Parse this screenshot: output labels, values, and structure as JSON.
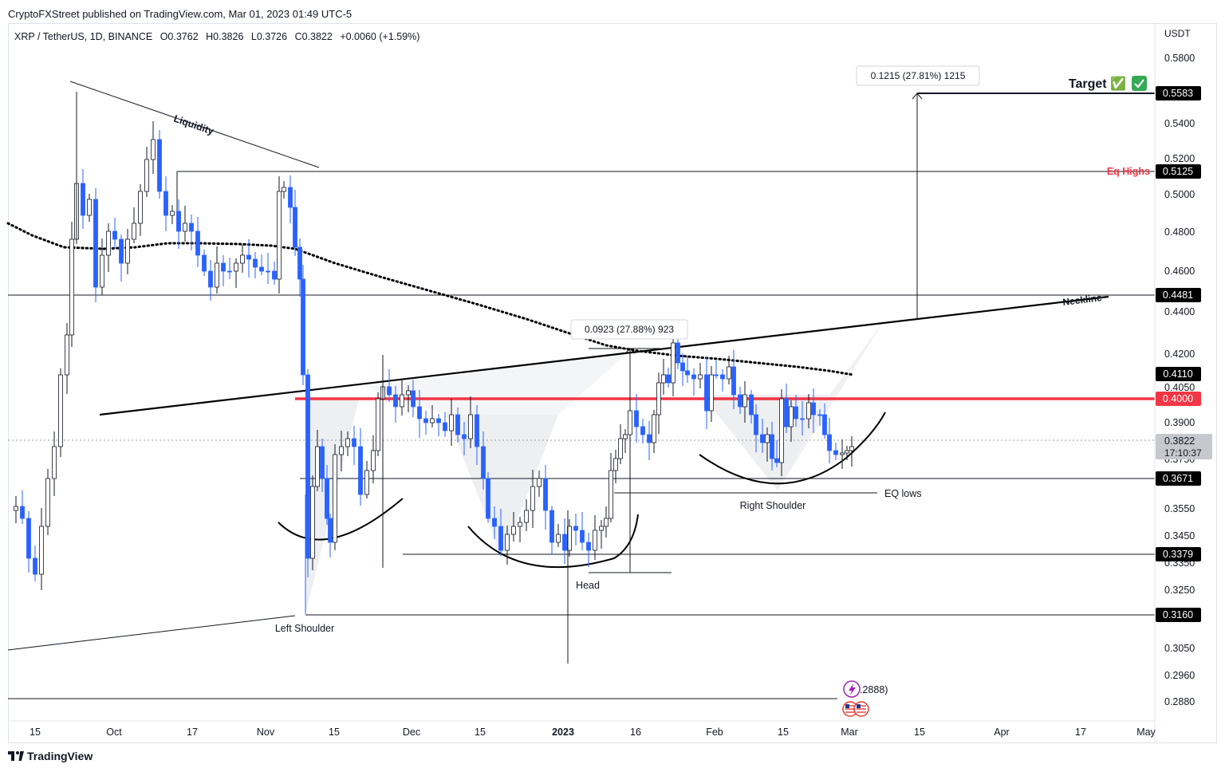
{
  "header": {
    "publisher": "CryptoFXStreet published on TradingView.com, Mar 01, 2023 01:49 UTC-5",
    "symbol": "XRP / TetherUS, 1D, BINANCE",
    "open": "O0.3762",
    "high": "H0.3826",
    "low": "L0.3726",
    "close": "C0.3822",
    "change": "+0.0060 (+1.59%)"
  },
  "footer": {
    "brand": "TradingView"
  },
  "chart_data": {
    "type": "candlestick",
    "currency_label": "USDT",
    "y_ticks": [
      "0.5800",
      "0.5400",
      "0.5200",
      "0.5000",
      "0.4800",
      "0.4600",
      "0.4400",
      "0.4200",
      "0.4050",
      "0.3900",
      "0.3750",
      "0.3550",
      "0.3450",
      "0.3350",
      "0.3250",
      "0.3050",
      "0.2960",
      "0.2880"
    ],
    "x_ticks": [
      {
        "label": "15",
        "bold": false
      },
      {
        "label": "Oct",
        "bold": false
      },
      {
        "label": "17",
        "bold": false
      },
      {
        "label": "Nov",
        "bold": false
      },
      {
        "label": "15",
        "bold": false
      },
      {
        "label": "Dec",
        "bold": false
      },
      {
        "label": "15",
        "bold": false
      },
      {
        "label": "2023",
        "bold": true
      },
      {
        "label": "16",
        "bold": false
      },
      {
        "label": "Feb",
        "bold": false
      },
      {
        "label": "15",
        "bold": false
      },
      {
        "label": "Mar",
        "bold": false
      },
      {
        "label": "15",
        "bold": false
      },
      {
        "label": "Apr",
        "bold": false
      },
      {
        "label": "17",
        "bold": false
      },
      {
        "label": "May",
        "bold": false
      }
    ],
    "price_tags": [
      {
        "label": "0.5583",
        "bg": "#000000",
        "fg": "#ffffff"
      },
      {
        "label": "0.5125",
        "bg": "#000000",
        "fg": "#ffffff"
      },
      {
        "label": "0.4481",
        "bg": "#000000",
        "fg": "#ffffff"
      },
      {
        "label": "0.4110",
        "bg": "#000000",
        "fg": "#ffffff"
      },
      {
        "label": "0.4000",
        "bg": "#f23645",
        "fg": "#ffffff"
      },
      {
        "label": "0.3671",
        "bg": "#000000",
        "fg": "#ffffff"
      },
      {
        "label": "0.3379",
        "bg": "#000000",
        "fg": "#ffffff"
      },
      {
        "label": "0.3160",
        "bg": "#000000",
        "fg": "#ffffff"
      }
    ],
    "last_price": {
      "value": "0.3822",
      "countdown": "17:10:37"
    },
    "annotations": {
      "target": "Target ✅",
      "eq_highs": "Eq Highs",
      "liquidity": "Liquidity",
      "neckline": "Neckline",
      "left_shoulder": "Left Shoulder",
      "head": "Head",
      "right_shoulder": "Right Shoulder",
      "eq_lows": "EQ lows",
      "measure_top": "0.1215 (27.81%) 1215",
      "measure_mid": "0.0923 (27.88%) 923",
      "event_value": ".2888)"
    },
    "colors": {
      "bull": "#ffffff",
      "bull_border": "#131722",
      "bear": "#2962ff",
      "resistance": "#f23645",
      "pattern_fill": "#dfe1e6"
    }
  }
}
